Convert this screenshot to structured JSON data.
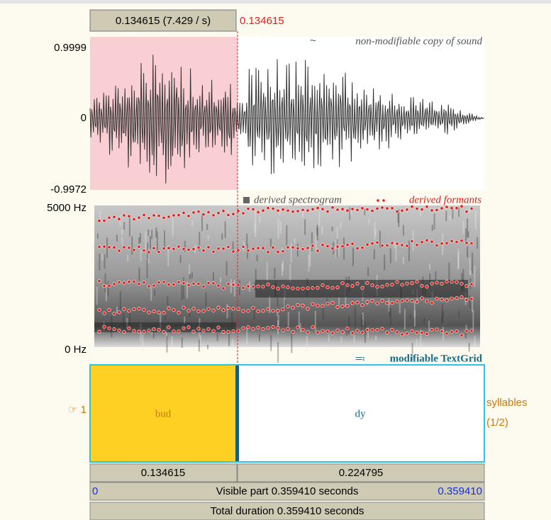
{
  "cursor": {
    "readout": "0.134615 (7.429 / s)",
    "time": "0.134615"
  },
  "waveform": {
    "caption": "non-modifiable copy of sound",
    "top": "0.9999",
    "zero": "0",
    "bottom": "-0.9972"
  },
  "spectrogram": {
    "caption": "derived spectrogram",
    "formants_caption": "derived formants",
    "top": "5000 Hz",
    "bottom": "0 Hz"
  },
  "textgrid": {
    "caption": "modifiable TextGrid",
    "tier_number": "☞ 1",
    "tier_name": "syllables",
    "tier_position": "(1/2)",
    "intervals": [
      {
        "text": "bud",
        "duration": "0.134615"
      },
      {
        "text": "dy",
        "duration": "0.224795"
      }
    ]
  },
  "visible": {
    "start": "0",
    "label": "Visible part 0.359410 seconds",
    "end": "0.359410"
  },
  "total": "Total duration 0.359410 seconds"
}
